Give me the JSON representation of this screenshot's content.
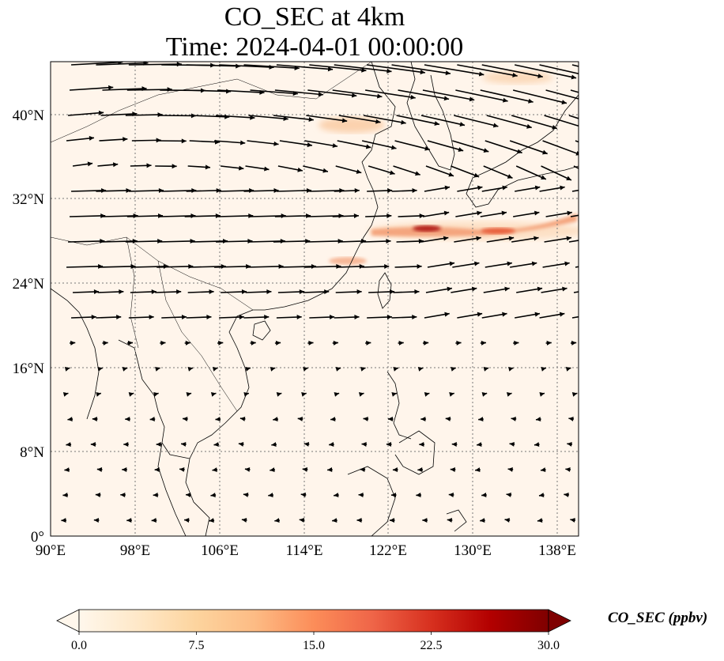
{
  "title": {
    "line1": "CO_SEC at 4km",
    "line2": "Time: 2024-04-01 00:00:00"
  },
  "map": {
    "lon_range": [
      90,
      140
    ],
    "lat_range": [
      0,
      45
    ],
    "lon_ticks": [
      "90°E",
      "98°E",
      "106°E",
      "114°E",
      "122°E",
      "130°E",
      "138°E"
    ],
    "lat_ticks": [
      "0°",
      "8°N",
      "16°N",
      "24°N",
      "32°N",
      "40°N"
    ],
    "gridlines": "dotted",
    "background_color": "#fff5eb",
    "plume_colors": [
      "#fde3c4",
      "#fdae6b",
      "#e05a2a",
      "#8b0000"
    ],
    "vector_color": "#000000",
    "coastline_color": "#000000"
  },
  "colorbar": {
    "label": "CO_SEC (ppbv)",
    "min": 0.0,
    "max": 30.0,
    "ticks": [
      "0.0",
      "7.5",
      "15.0",
      "22.5",
      "30.0"
    ],
    "colormap": "OrRd",
    "extend": "both",
    "stops": [
      "#fff7ec",
      "#fee8c8",
      "#fdd49e",
      "#fdbb84",
      "#fc8d59",
      "#ef6548",
      "#d7301f",
      "#b30000",
      "#7f0000"
    ]
  }
}
